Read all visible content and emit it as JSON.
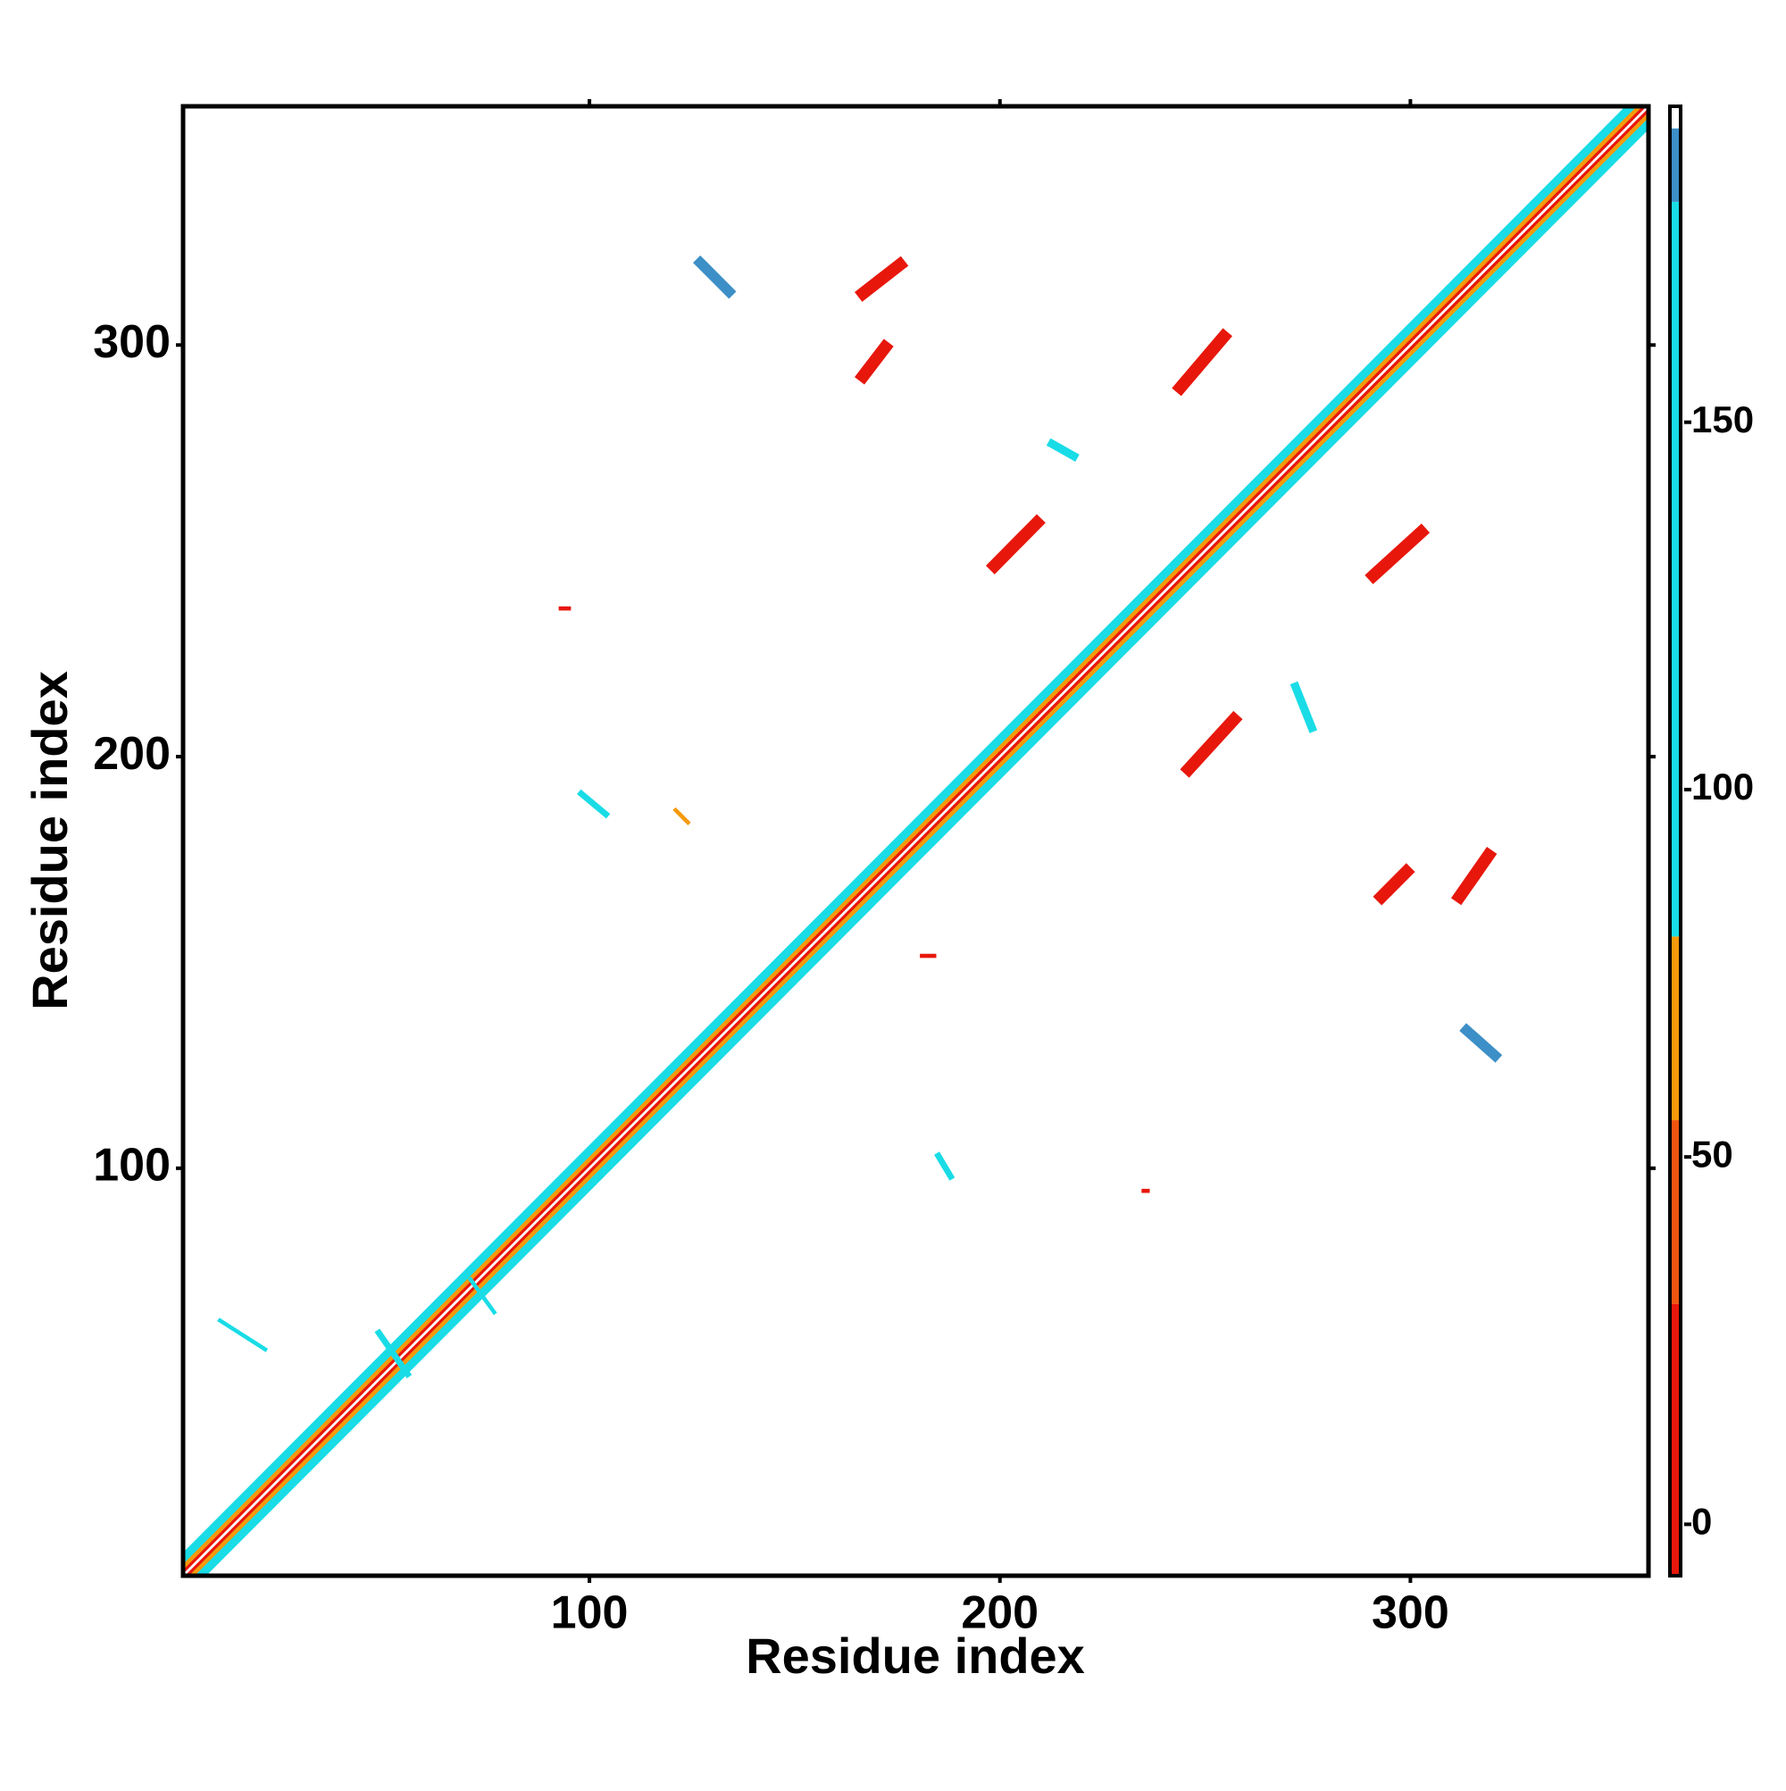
{
  "chart_data": {
    "type": "contact_map",
    "xlabel": "Residue index",
    "ylabel": "Residue index",
    "xlim": [
      1,
      358
    ],
    "ylim": [
      1,
      358
    ],
    "xticks": [
      100,
      200,
      300
    ],
    "yticks": [
      100,
      200,
      300
    ],
    "colorbar": {
      "lim": [
        -7,
        193
      ],
      "ticks": [
        0,
        50,
        100,
        150
      ],
      "levels": [
        -7,
        30,
        55,
        80,
        180,
        190,
        193
      ],
      "colors": [
        "#e8170c",
        "#f0540f",
        "#f59a0a",
        "#19dce6",
        "#3d8fc7",
        "#ffffff"
      ]
    },
    "features": [
      {
        "x": [
          1,
          358
        ],
        "y": [
          1,
          358
        ],
        "value": 100,
        "width": 8
      },
      {
        "x": [
          1,
          358
        ],
        "y": [
          1,
          358
        ],
        "value": 60,
        "width": 4
      },
      {
        "x": [
          1,
          358
        ],
        "y": [
          1,
          358
        ],
        "value": 10,
        "width": 2
      },
      {
        "x": [
          1,
          358
        ],
        "y": [
          1,
          358
        ],
        "value": 191,
        "width": 0.6
      },
      {
        "x": [
          166.7,
          175.6
        ],
        "y": [
          312.6,
          319.5
        ],
        "value": 10,
        "width": 3
      },
      {
        "x": [
          166.7,
          172
        ],
        "y": [
          292.5,
          299.4
        ],
        "value": 10,
        "width": 3
      },
      {
        "x": [
          127,
          134
        ],
        "y": [
          320,
          313
        ],
        "value": 185,
        "width": 2.5
      },
      {
        "x": [
          244,
          254.5
        ],
        "y": [
          289.7,
          302
        ],
        "value": 10,
        "width": 3
      },
      {
        "x": [
          198.7,
          209
        ],
        "y": [
          246.4,
          256.8
        ],
        "value": 10,
        "width": 3
      },
      {
        "x": [
          291,
          302.6
        ],
        "y": [
          244,
          254.5
        ],
        "value": 10,
        "width": 3
      },
      {
        "x": [
          246,
          257
        ],
        "y": [
          197,
          209
        ],
        "value": 10,
        "width": 3
      },
      {
        "x": [
          293,
          299
        ],
        "y": [
          166,
          172
        ],
        "value": 10,
        "width": 3
      },
      {
        "x": [
          312,
          319
        ],
        "y": [
          166,
          176
        ],
        "value": 10,
        "width": 3
      },
      {
        "x": [
          313.7,
          320.6
        ],
        "y": [
          133.5,
          127.4
        ],
        "value": 185,
        "width": 2.5
      },
      {
        "x": [
          212.7,
          218
        ],
        "y": [
          276,
          273
        ],
        "value": 100,
        "width": 2
      },
      {
        "x": [
          272,
          276
        ],
        "y": [
          217,
          207
        ],
        "value": 100,
        "width": 2
      },
      {
        "x": [
          48.7,
          55.7
        ],
        "y": [
          60,
          50
        ],
        "value": 100,
        "width": 1.5
      },
      {
        "x": [
          71,
          76.8
        ],
        "y": [
          73,
          65
        ],
        "value": 100,
        "width": 1
      },
      {
        "x": [
          10,
          21
        ],
        "y": [
          63,
          56
        ],
        "value": 100,
        "width": 1
      },
      {
        "x": [
          93,
          95
        ],
        "y": [
          236,
          236
        ],
        "value": 10,
        "width": 1
      },
      {
        "x": [
          235,
          236
        ],
        "y": [
          94.5,
          94.5
        ],
        "value": 10,
        "width": 1
      },
      {
        "x": [
          181,
          184
        ],
        "y": [
          151.6,
          151.6
        ],
        "value": 10,
        "width": 1
      },
      {
        "x": [
          98,
          104
        ],
        "y": [
          191,
          186
        ],
        "value": 100,
        "width": 1.5
      },
      {
        "x": [
          185,
          188
        ],
        "y": [
          103,
          98
        ],
        "value": 100,
        "width": 1.5
      },
      {
        "x": [
          121,
          124
        ],
        "y": [
          187,
          184
        ],
        "value": 60,
        "width": 1
      }
    ]
  }
}
